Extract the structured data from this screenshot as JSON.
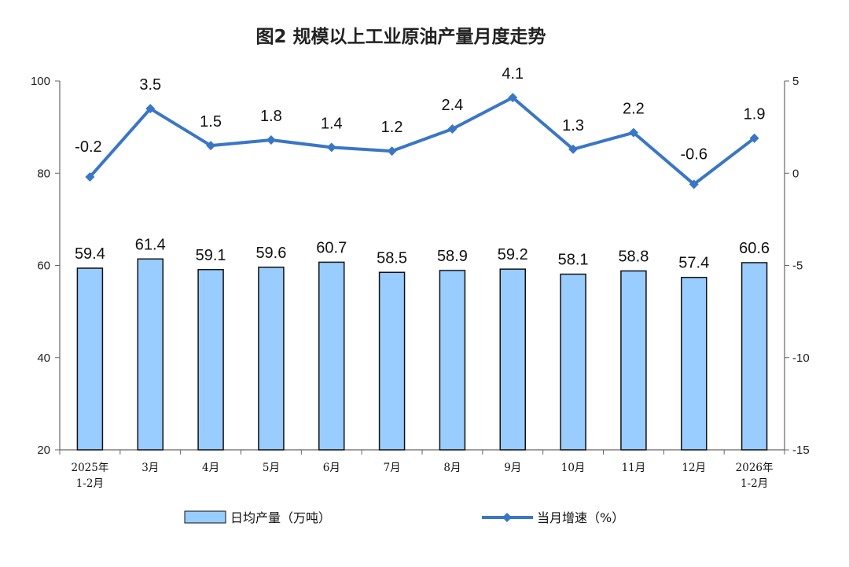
{
  "chart_data": {
    "type": "bar+line",
    "title": "图2  规模以上工业原油产量月度走势",
    "categories": [
      [
        "2025年",
        "1-2月"
      ],
      [
        "3月"
      ],
      [
        "4月"
      ],
      [
        "5月"
      ],
      [
        "6月"
      ],
      [
        "7月"
      ],
      [
        "8月"
      ],
      [
        "9月"
      ],
      [
        "10月"
      ],
      [
        "11月"
      ],
      [
        "12月"
      ],
      [
        "2026年",
        "1-2月"
      ]
    ],
    "series": [
      {
        "name": "日均产量（万吨）",
        "type": "bar",
        "axis": "left",
        "color": "#99CCFF",
        "values": [
          59.4,
          61.4,
          59.1,
          59.6,
          60.7,
          58.5,
          58.9,
          59.2,
          58.1,
          58.8,
          57.4,
          60.6
        ]
      },
      {
        "name": "当月增速（%）",
        "type": "line",
        "axis": "right",
        "color": "#3A76C6",
        "marker": "diamond",
        "values": [
          -0.2,
          3.5,
          1.5,
          1.8,
          1.4,
          1.2,
          2.4,
          4.1,
          1.3,
          2.2,
          -0.6,
          1.9
        ]
      }
    ],
    "left_axis": {
      "ylim": [
        20,
        100
      ],
      "ticks": [
        20,
        40,
        60,
        80,
        100
      ]
    },
    "right_axis": {
      "ylim": [
        -15,
        5
      ],
      "ticks": [
        -15,
        -10,
        -5,
        0,
        5
      ]
    },
    "grid": false,
    "legend": "bottom"
  }
}
